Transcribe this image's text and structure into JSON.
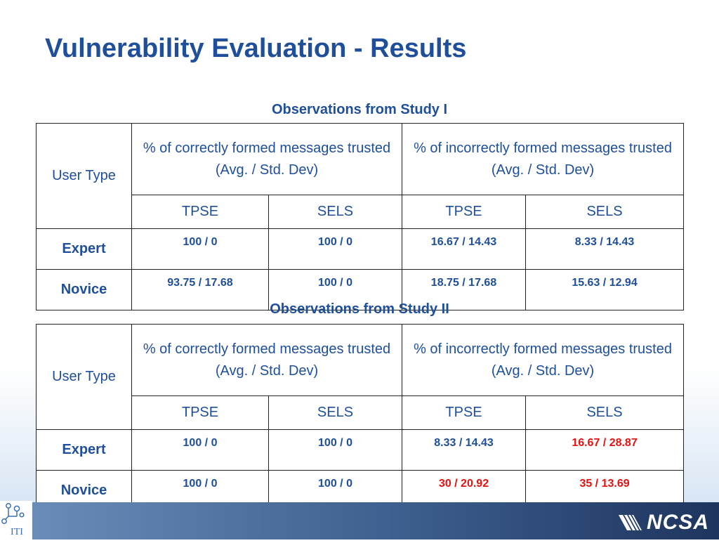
{
  "slide": {
    "title": "Vulnerability Evaluation - Results"
  },
  "study1": {
    "caption": "Observations from Study I",
    "user_type_header": "User Type",
    "correct_header": "% of correctly formed messages trusted (Avg. / Std. Dev)",
    "incorrect_header": "% of incorrectly formed messages trusted  (Avg. / Std. Dev)",
    "subheaders": [
      "TPSE",
      "SELS",
      "TPSE",
      "SELS"
    ],
    "rows": [
      {
        "label": "Expert",
        "values": [
          "100 / 0",
          "100 / 0",
          "16.67 / 14.43",
          "8.33 / 14.43"
        ]
      },
      {
        "label": "Novice",
        "values": [
          "93.75 / 17.68",
          "100 / 0",
          "18.75 / 17.68",
          "15.63 / 12.94"
        ]
      }
    ]
  },
  "study2": {
    "caption": "Observations from Study II",
    "user_type_header": "User Type",
    "correct_header": "% of correctly formed messages trusted (Avg. / Std. Dev)",
    "incorrect_header": "% of incorrectly formed messages trusted  (Avg. / Std. Dev)",
    "subheaders": [
      "TPSE",
      "SELS",
      "TPSE",
      "SELS"
    ],
    "rows": [
      {
        "label": "Expert",
        "values": [
          "100 / 0",
          "100 / 0",
          "8.33 / 14.43",
          "16.67 / 28.87"
        ]
      },
      {
        "label": "Novice",
        "values": [
          "100 / 0",
          "100 / 0",
          "30 / 20.92",
          "35 / 13.69"
        ]
      }
    ],
    "highlight_color": "#e51212"
  },
  "footer": {
    "left_logo_text": "ITI",
    "right_logo_text": "NCSA"
  }
}
